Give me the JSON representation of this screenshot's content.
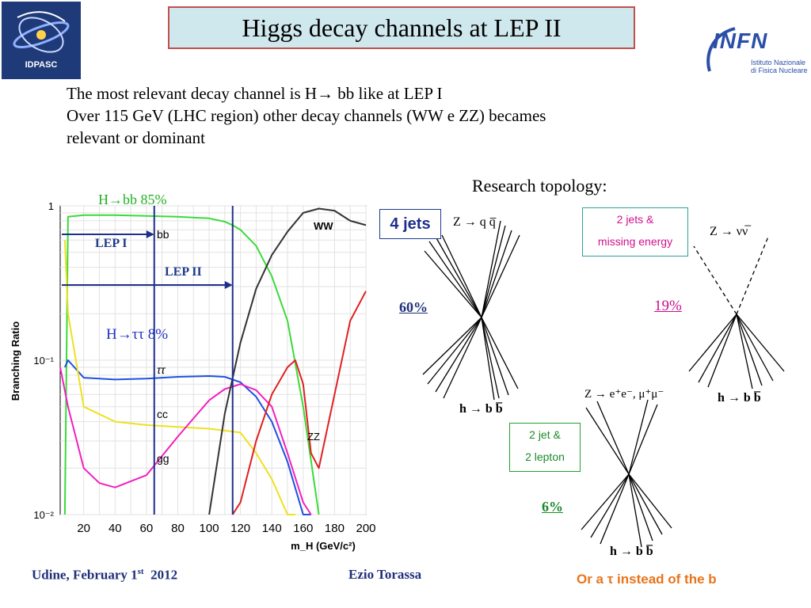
{
  "header": {
    "title": "Higgs decay channels at LEP II",
    "logo_left_text": "IDPASC",
    "logo_right_main": "INFN",
    "logo_right_sub1": "Istituto Nazionale",
    "logo_right_sub2": "di Fisica Nucleare"
  },
  "intro": {
    "line1": "The most relevant decay channel is H→ bb like at LEP I",
    "line2": "Over 115 GeV (LHC region)  other decay channels   (WW e ZZ) becames",
    "line3": "relevant or dominant"
  },
  "topology": {
    "label": "Research topology:",
    "four_jets": "4 jets",
    "four_jets_pct": "60%",
    "z_qq": "Z → q q̅",
    "h_bb_1": "h → b b̅",
    "missing_box_line1": "2 jets &",
    "missing_box_line2": "missing energy",
    "missing_pct": "19%",
    "z_nunu": "Z → νν̅",
    "h_bb_2": "h → b b̅",
    "lepton_box_line1": "2 jet &",
    "lepton_box_line2": "2 lepton",
    "lepton_pct": "6%",
    "z_ll": "Z → e⁺e⁻, μ⁺μ⁻",
    "h_bb_3": "h → b b̅"
  },
  "chart_data": {
    "type": "line",
    "ylabel": "Branching Ratio",
    "xlabel": "m_H (GeV/c²)",
    "x_ticks": [
      "20",
      "40",
      "60",
      "80",
      "100",
      "120",
      "140",
      "160",
      "180",
      "200"
    ],
    "y_ticks": [
      "1",
      "10⁻¹",
      "10⁻²"
    ],
    "xlim": [
      5,
      200
    ],
    "ylim": [
      0.01,
      1
    ],
    "yscale": "log",
    "grid": true,
    "series": [
      {
        "name": "bb",
        "color": "#3adb3a",
        "x": [
          8,
          10,
          20,
          40,
          60,
          80,
          100,
          110,
          115,
          120,
          130,
          140,
          150,
          160,
          170
        ],
        "y": [
          0.01,
          0.85,
          0.87,
          0.87,
          0.86,
          0.85,
          0.83,
          0.79,
          0.75,
          0.7,
          0.55,
          0.35,
          0.18,
          0.05,
          0.01
        ]
      },
      {
        "name": "ττ",
        "color": "#2050e0",
        "x": [
          8,
          10,
          20,
          40,
          60,
          80,
          100,
          110,
          120,
          130,
          140,
          150,
          160,
          165
        ],
        "y": [
          0.09,
          0.1,
          0.077,
          0.075,
          0.076,
          0.078,
          0.079,
          0.078,
          0.072,
          0.058,
          0.04,
          0.022,
          0.01,
          0.007
        ]
      },
      {
        "name": "cc",
        "color": "#f0e020",
        "x": [
          8,
          10,
          20,
          40,
          60,
          80,
          100,
          120,
          130,
          140,
          150,
          155
        ],
        "y": [
          0.6,
          0.2,
          0.05,
          0.04,
          0.038,
          0.037,
          0.036,
          0.034,
          0.025,
          0.017,
          0.01,
          0.008
        ]
      },
      {
        "name": "gg",
        "color": "#f020c0",
        "x": [
          5,
          10,
          20,
          30,
          40,
          60,
          80,
          100,
          110,
          120,
          130,
          140,
          150,
          160,
          165
        ],
        "y": [
          0.09,
          0.05,
          0.02,
          0.016,
          0.015,
          0.018,
          0.032,
          0.055,
          0.065,
          0.07,
          0.064,
          0.05,
          0.025,
          0.012,
          0.009
        ]
      },
      {
        "name": "WW",
        "color": "#333333",
        "x": [
          100,
          110,
          120,
          130,
          140,
          150,
          160,
          170,
          180,
          190,
          200
        ],
        "y": [
          0.01,
          0.045,
          0.13,
          0.29,
          0.48,
          0.68,
          0.9,
          0.96,
          0.93,
          0.8,
          0.75
        ]
      },
      {
        "name": "ZZ",
        "color": "#e02020",
        "x": [
          115,
          120,
          130,
          140,
          150,
          155,
          160,
          165,
          170,
          180,
          190,
          200
        ],
        "y": [
          0.008,
          0.012,
          0.03,
          0.06,
          0.09,
          0.1,
          0.07,
          0.025,
          0.02,
          0.06,
          0.18,
          0.28
        ]
      }
    ],
    "annotations": {
      "hbb": "H→bb  85%",
      "htautau": "H→ττ  8%",
      "lep1": "LEP I",
      "lep2": "LEP II",
      "label_bb": "bb",
      "label_ww": "WW",
      "label_tautau": "ττ",
      "label_cc": "cc",
      "label_gg": "gg",
      "label_zz": "ZZ"
    },
    "lep1_mass": 65,
    "lep2_mass": 115
  },
  "footer": {
    "date_main": "Udine, February 1",
    "date_sup": "st",
    "date_year": "  2012",
    "author": "Ezio Torassa",
    "note": "Or a τ instead of the b"
  }
}
